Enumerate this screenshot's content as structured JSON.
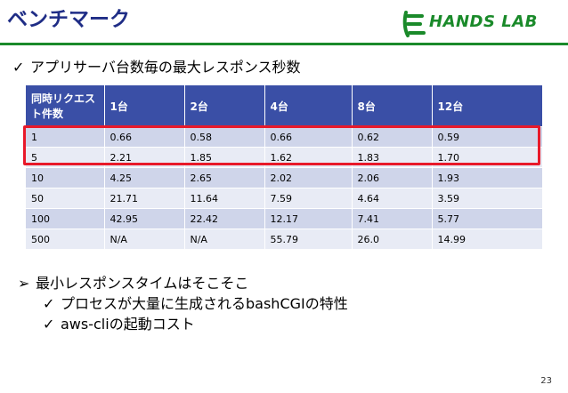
{
  "title": "ベンチマーク",
  "logo_text": "HANDS LAB",
  "bullet1": "アプリサーバ台数毎の最大レスポンス秒数",
  "table": {
    "headers": [
      "同時リクエスト件数",
      "1台",
      "2台",
      "4台",
      "8台",
      "12台"
    ],
    "rows": [
      [
        "1",
        "0.66",
        "0.58",
        "0.66",
        "0.62",
        "0.59"
      ],
      [
        "5",
        "2.21",
        "1.85",
        "1.62",
        "1.83",
        "1.70"
      ],
      [
        "10",
        "4.25",
        "2.65",
        "2.02",
        "2.06",
        "1.93"
      ],
      [
        "50",
        "21.71",
        "11.64",
        "7.59",
        "4.64",
        "3.59"
      ],
      [
        "100",
        "42.95",
        "22.42",
        "12.17",
        "7.41",
        "5.77"
      ],
      [
        "500",
        "N/A",
        "N/A",
        "55.79",
        "26.0",
        "14.99"
      ]
    ]
  },
  "bullet2": "最小レスポンスタイムはそこそこ",
  "sub_bullets": [
    "プロセスが大量に生成されるbashCGIの特性",
    "aws-cliの起動コスト"
  ],
  "page_number": "23",
  "colors": {
    "title": "#1f2d86",
    "brand_green": "#1a8a2a",
    "header_bg": "#3a4fa6",
    "row_odd": "#cfd5ea",
    "row_even": "#e8ebf5",
    "highlight": "#e8192a"
  }
}
